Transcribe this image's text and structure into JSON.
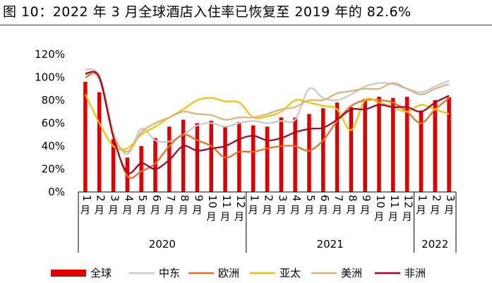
{
  "title": "图 10：2022 年 3 月全球酒店入住率已恢复至 2019 年的 82.6%",
  "chart_data": {
    "type": "bar",
    "y_ticks": [
      "0%",
      "20%",
      "40%",
      "60%",
      "80%",
      "100%",
      "120%"
    ],
    "ylim": [
      0,
      120
    ],
    "categories": [
      "1月",
      "2月",
      "3月",
      "4月",
      "5月",
      "6月",
      "7月",
      "8月",
      "9月",
      "10月",
      "11月",
      "12月",
      "1月",
      "2月",
      "3月",
      "4月",
      "5月",
      "6月",
      "7月",
      "8月",
      "9月",
      "10月",
      "11月",
      "12月",
      "1月",
      "2月",
      "3月"
    ],
    "years": [
      {
        "label": "2020",
        "start": 0,
        "end": 11
      },
      {
        "label": "2021",
        "start": 12,
        "end": 23
      },
      {
        "label": "2022",
        "start": 24,
        "end": 26
      }
    ],
    "bar_series": {
      "name": "全球",
      "color": "#e00000",
      "values": [
        96,
        87,
        46,
        30,
        40,
        47,
        57,
        63,
        60,
        62,
        57,
        61,
        58,
        57,
        65,
        65,
        68,
        73,
        78,
        74,
        81,
        83,
        82,
        83,
        71,
        80,
        82.6
      ]
    },
    "series": [
      {
        "name": "中东",
        "color": "#c8c8c8",
        "values": [
          107,
          101,
          52,
          33,
          55,
          45,
          44,
          50,
          58,
          60,
          57,
          60,
          62,
          60,
          62,
          63,
          90,
          82,
          80,
          85,
          92,
          95,
          94,
          90,
          87,
          92,
          97
        ]
      },
      {
        "name": "欧洲",
        "color": "#ed6d1f",
        "values": [
          100,
          100,
          50,
          14,
          18,
          25,
          40,
          50,
          45,
          40,
          30,
          35,
          35,
          38,
          40,
          40,
          36,
          45,
          62,
          75,
          80,
          80,
          78,
          70,
          60,
          72,
          82
        ]
      },
      {
        "name": "亚太",
        "color": "#f6c000",
        "values": [
          85,
          60,
          40,
          38,
          50,
          57,
          65,
          72,
          80,
          82,
          79,
          78,
          65,
          66,
          70,
          80,
          78,
          75,
          72,
          54,
          80,
          78,
          74,
          70,
          76,
          72,
          68
        ]
      },
      {
        "name": "美洲",
        "color": "#d9b27a",
        "values": [
          104,
          98,
          50,
          35,
          52,
          60,
          65,
          70,
          68,
          67,
          63,
          65,
          65,
          68,
          72,
          74,
          80,
          80,
          86,
          88,
          90,
          90,
          95,
          90,
          85,
          90,
          94
        ]
      },
      {
        "name": "非洲",
        "color": "#a50021",
        "values": [
          103,
          100,
          48,
          17,
          25,
          20,
          28,
          40,
          36,
          38,
          40,
          46,
          49,
          45,
          47,
          52,
          55,
          56,
          63,
          72,
          72,
          76,
          74,
          74,
          70,
          78,
          84
        ]
      }
    ]
  }
}
